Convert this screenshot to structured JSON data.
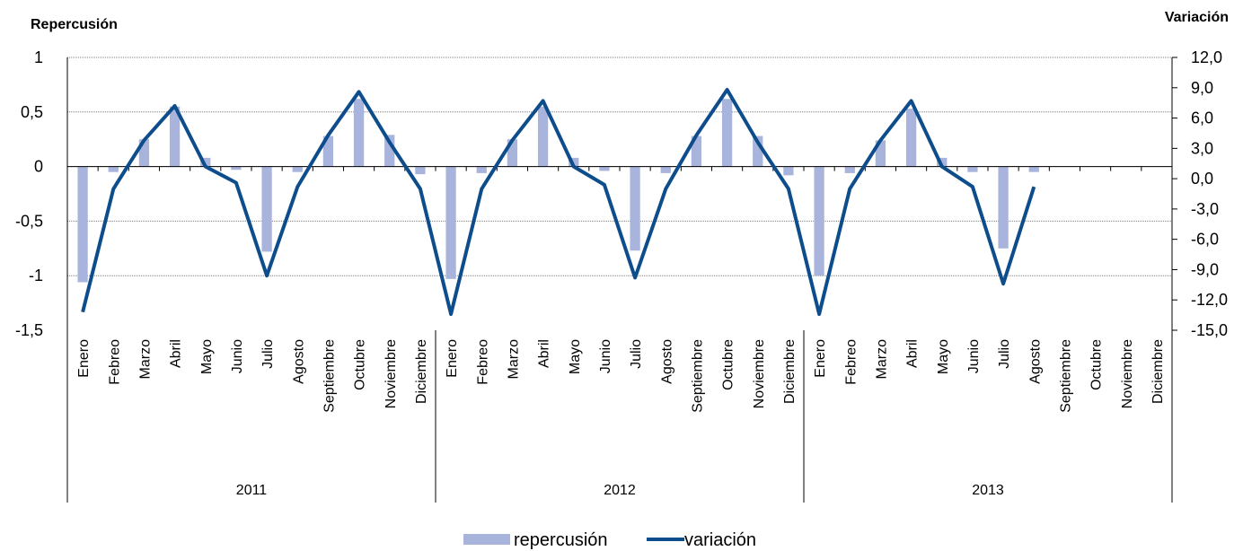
{
  "chart_data": {
    "type": "bar",
    "left_axis_title": "Repercusión",
    "right_axis_title": "Variación",
    "left_ticks": [
      "1",
      "0,5",
      "0",
      "-0,5",
      "-1",
      "-1,5"
    ],
    "right_ticks": [
      "12,0",
      "9,0",
      "6,0",
      "3,0",
      "0,0",
      "-3,0",
      "-6,0",
      "-9,0",
      "-12,0",
      "-15,0"
    ],
    "ylim_left": [
      -1.5,
      1
    ],
    "ylim_right": [
      -15,
      12
    ],
    "years": [
      "2011",
      "2012",
      "2013"
    ],
    "months": [
      "Enero",
      "Febreo",
      "Marzo",
      "Abril",
      "Mayo",
      "Junio",
      "Julio",
      "Agosto",
      "Septiembre",
      "Octubre",
      "Noviembre",
      "Diciembre"
    ],
    "grid": true,
    "legend_position": "bottom",
    "series": [
      {
        "name": "repercusión",
        "type": "bar",
        "axis": "left",
        "color": "#a9b4dc",
        "values": [
          -1.06,
          -0.05,
          0.25,
          0.55,
          0.08,
          -0.03,
          -0.78,
          -0.05,
          0.28,
          0.62,
          0.29,
          -0.07,
          -1.03,
          -0.06,
          0.25,
          0.55,
          0.08,
          -0.04,
          -0.77,
          -0.06,
          0.28,
          0.62,
          0.28,
          -0.08,
          -1.0,
          -0.06,
          0.24,
          0.53,
          0.08,
          -0.05,
          -0.75,
          -0.05,
          null,
          null,
          null,
          null
        ]
      },
      {
        "name": "variación",
        "type": "line",
        "axis": "right",
        "color": "#0e4d8c",
        "values": [
          -13.2,
          -1.0,
          3.8,
          7.2,
          1.2,
          -0.4,
          -9.6,
          -0.8,
          4.3,
          8.6,
          3.6,
          -1.0,
          -13.4,
          -1.0,
          3.8,
          7.7,
          1.2,
          -0.6,
          -9.8,
          -1.0,
          4.3,
          8.8,
          3.6,
          -1.0,
          -13.4,
          -1.0,
          3.8,
          7.7,
          1.2,
          -0.8,
          -10.4,
          -0.8,
          null,
          null,
          null,
          null
        ]
      }
    ]
  }
}
